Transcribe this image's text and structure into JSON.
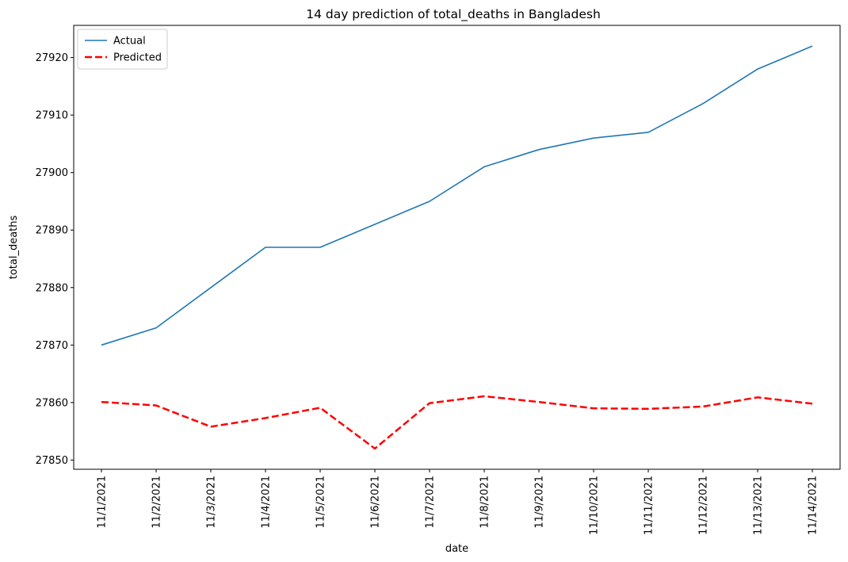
{
  "chart_data": {
    "type": "line",
    "title": "14 day prediction of total_deaths in Bangladesh",
    "xlabel": "date",
    "ylabel": "total_deaths",
    "categories": [
      "11/1/2021",
      "11/2/2021",
      "11/3/2021",
      "11/4/2021",
      "11/5/2021",
      "11/6/2021",
      "11/7/2021",
      "11/8/2021",
      "11/9/2021",
      "11/10/2021",
      "11/11/2021",
      "11/12/2021",
      "11/13/2021",
      "11/14/2021"
    ],
    "series": [
      {
        "name": "Actual",
        "color": "#1f77b4",
        "style": "solid",
        "values": [
          27870,
          27873,
          27880,
          27887,
          27887,
          27891,
          27895,
          27901,
          27904,
          27906,
          27907,
          27912,
          27918,
          27922
        ]
      },
      {
        "name": "Predicted",
        "color": "#ff0000",
        "style": "dashed",
        "values": [
          27860.1,
          27859.5,
          27855.8,
          27857.3,
          27859.1,
          27852.0,
          27859.9,
          27861.1,
          27860.1,
          27859.0,
          27858.9,
          27859.3,
          27860.9,
          27859.8
        ]
      }
    ],
    "ylim": [
      27848.4,
      27925.6
    ],
    "yticks": [
      27850,
      27860,
      27870,
      27880,
      27890,
      27900,
      27910,
      27920
    ],
    "grid": false,
    "legend_position": "top-left"
  }
}
